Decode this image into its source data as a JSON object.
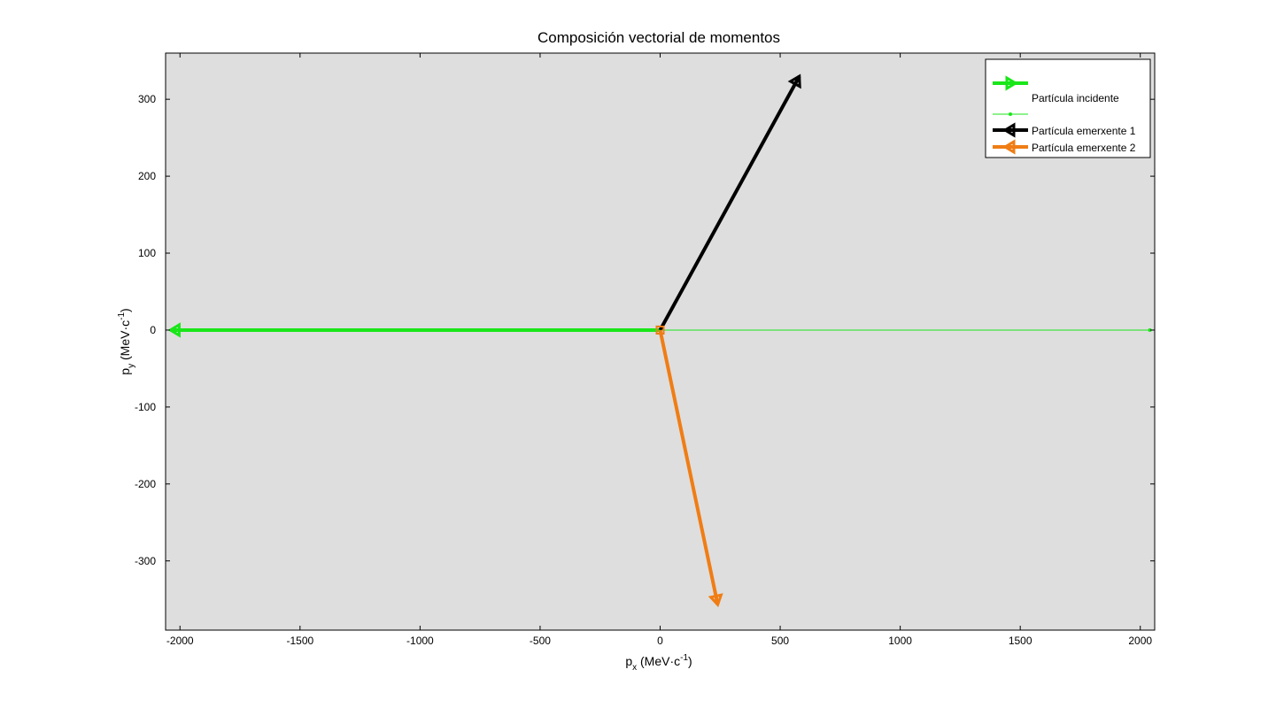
{
  "chart_data": {
    "type": "line",
    "title": "Composición vectorial de momentos",
    "xlabel": {
      "base": "p",
      "sub": "x",
      "text": " (MeV·c",
      "sup": "-1",
      "tail": ")"
    },
    "ylabel": {
      "base": "p",
      "sub": "y",
      "text": " (MeV·c",
      "sup": "-1",
      "tail": ")"
    },
    "xlim": [
      -2060,
      2060
    ],
    "ylim": [
      -390,
      360
    ],
    "xticks": [
      -2000,
      -1500,
      -1000,
      -500,
      0,
      500,
      1000,
      1500,
      2000
    ],
    "yticks": [
      -300,
      -200,
      -100,
      0,
      100,
      200,
      300
    ],
    "xtick_labels": [
      "-2000",
      "-1500",
      "-1000",
      "-500",
      "0",
      "500",
      "1000",
      "1500",
      "2000"
    ],
    "ytick_labels": [
      "-300",
      "-200",
      "-100",
      "0",
      "100",
      "200",
      "300"
    ],
    "grid": false,
    "background": "#dedede",
    "legend_position": "top-right",
    "series": [
      {
        "name": "",
        "color": "#19e619",
        "style": "arrow-thick",
        "x": [
          -2040,
          0
        ],
        "y": [
          0,
          0
        ]
      },
      {
        "name": "Partícula incidente",
        "color": "#19e619",
        "style": "thin-dot",
        "x": [
          0,
          2040
        ],
        "y": [
          0,
          0
        ]
      },
      {
        "name": "Partícula emerxente 1",
        "color": "#000000",
        "style": "arrow-thick",
        "x": [
          0,
          580
        ],
        "y": [
          0,
          330
        ]
      },
      {
        "name": "Partícula emerxente 2",
        "color": "#f07d14",
        "style": "arrow-thick",
        "x": [
          0,
          240
        ],
        "y": [
          0,
          -357
        ]
      }
    ]
  }
}
